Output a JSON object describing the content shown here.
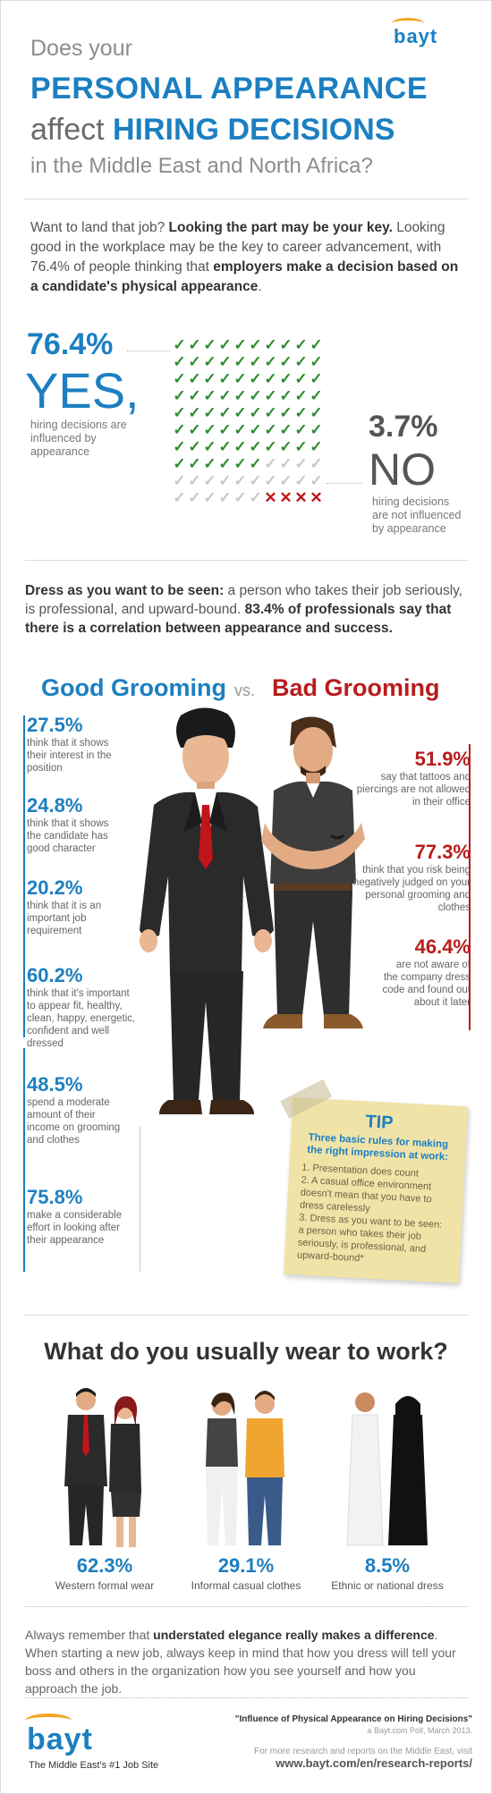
{
  "brand": {
    "logo_text": "bayt",
    "tagline": "The Middle East's #1 Job Site"
  },
  "header": {
    "line1": "Does your",
    "line2": "PERSONAL APPEARANCE",
    "line3_light": "affect",
    "line3_bold": "HIRING DECISIONS",
    "line4": "in the Middle East and North Africa?"
  },
  "intro": {
    "p1": "Want to land that job? ",
    "p1_bold": "Looking the part may be your key.",
    "p2": " Looking good in the workplace may be the key to career advancement, with 76.4% of people thinking that ",
    "p2_bold": "employers make a decision based on a candidate's physical appearance",
    "p2_end": "."
  },
  "yes_no": {
    "yes_pct": "76.4%",
    "yes_word": "YES,",
    "yes_desc": "hiring decisions are influenced by appearance",
    "no_pct": "3.7%",
    "no_word": "NO",
    "no_desc_1": "hiring decisions",
    "no_desc_2": "are not influenced",
    "no_desc_3": "by appearance",
    "grid_checks_green": 76,
    "grid_checks_gray": 20,
    "grid_x_red": 4,
    "colors": {
      "yes": "#1c7fc1",
      "check": "#2e8b2e",
      "x": "#c0151a",
      "neutral": "#c8c8c8"
    }
  },
  "dress": {
    "bold_lead": "Dress as you want to be seen:",
    "text": " a person who takes their job seriously, is professional, and upward-bound. ",
    "bold_tail": "83.4% of professionals say that there is a correlation between appearance and success."
  },
  "grooming": {
    "good_title": "Good Grooming",
    "vs": "vs.",
    "bad_title": "Bad Grooming",
    "good_stats": [
      {
        "pct": "27.5%",
        "text": "think that it shows their interest in the position"
      },
      {
        "pct": "24.8%",
        "text": "think that it shows the candidate has good character"
      },
      {
        "pct": "20.2%",
        "text": "think that it is an important job requirement"
      },
      {
        "pct": "60.2%",
        "text": "think that it's important to appear fit, healthy, clean, happy, energetic, confident and well dressed"
      },
      {
        "pct": "48.5%",
        "text": "spend a moderate amount of their income on grooming and clothes"
      },
      {
        "pct": "75.8%",
        "text": "make a considerable effort in looking after their appearance"
      }
    ],
    "bad_stats": [
      {
        "pct": "51.9%",
        "text": "say that tattoos and piercings are not allowed in their office"
      },
      {
        "pct": "77.3%",
        "text": "think that you risk being negatively judged on your personal grooming and clothes"
      },
      {
        "pct": "46.4%",
        "text": "are not aware of the company dress code and found out about it later"
      }
    ]
  },
  "tip": {
    "title": "TIP",
    "subtitle": "Three basic rules for making the right impression at work:",
    "rule1": "1. Presentation does count",
    "rule2": "2. A casual office environment doesn't mean that you have to dress carelessly",
    "rule3": "3. Dress as you want to be seen: a person who takes their job seriously, is professional, and upward-bound*"
  },
  "wear": {
    "title": "What do you usually wear to work?",
    "items": [
      {
        "pct": "62.3%",
        "label": "Western formal wear"
      },
      {
        "pct": "29.1%",
        "label": "Informal casual clothes"
      },
      {
        "pct": "8.5%",
        "label": "Ethnic or national dress"
      }
    ]
  },
  "closing": {
    "a": "Always remember that ",
    "b": "understated elegance really makes a difference",
    "c": ". When starting a new job, always keep in mind that how you dress will tell your boss and others in the organization how you see yourself and how you approach the job."
  },
  "source": {
    "title": "\"Influence of Physical Appearance on Hiring Decisions\"",
    "sub": "a Bayt.com Poll, March 2013.",
    "more": "For more research and reports on the Middle East, visit",
    "url": "www.bayt.com/en/research-reports/"
  }
}
